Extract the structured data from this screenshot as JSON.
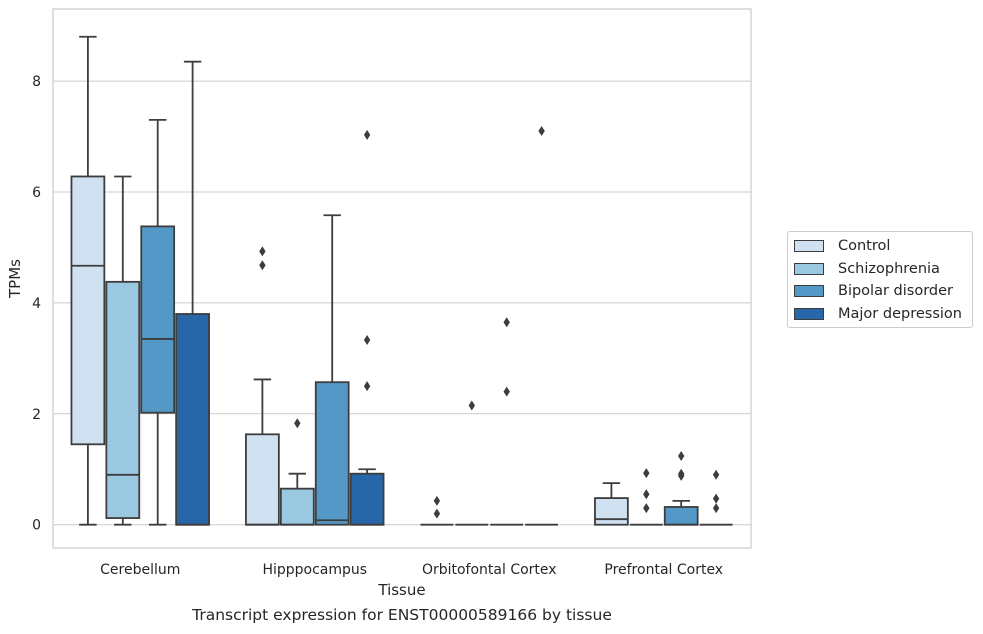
{
  "chart_data": {
    "type": "box",
    "title": "",
    "xlabel": "Tissue",
    "ylabel": "TPMs",
    "caption": "Transcript expression for ENST00000589166 by tissue",
    "ylim": [
      -0.42,
      9.3
    ],
    "yticks": [
      0,
      2,
      4,
      6,
      8
    ],
    "grid": "horizontal",
    "legend_position": "right",
    "categories": [
      "Cerebellum",
      "Hipppocampus",
      "Orbitofontal Cortex",
      "Prefrontal Cortex"
    ],
    "series": [
      {
        "name": "Control",
        "color": "#d0e1f2",
        "boxes": [
          {
            "min": 0,
            "q1": 1.45,
            "median": 4.67,
            "q3": 6.28,
            "max": 8.8,
            "outliers": []
          },
          {
            "min": 0,
            "q1": 0,
            "median": 0,
            "q3": 1.63,
            "max": 2.62,
            "outliers": [
              4.68,
              4.93
            ]
          },
          {
            "min": 0,
            "q1": 0,
            "median": 0,
            "q3": 0,
            "max": 0,
            "outliers": [
              0.2,
              0.43
            ]
          },
          {
            "min": 0,
            "q1": 0,
            "median": 0.1,
            "q3": 0.48,
            "max": 0.75,
            "outliers": []
          }
        ]
      },
      {
        "name": "Schizophrenia",
        "color": "#9ac8e0",
        "boxes": [
          {
            "min": 0,
            "q1": 0.12,
            "median": 0.9,
            "q3": 4.38,
            "max": 6.28,
            "outliers": []
          },
          {
            "min": 0,
            "q1": 0,
            "median": 0,
            "q3": 0.65,
            "max": 0.92,
            "outliers": [
              1.83
            ]
          },
          {
            "min": 0,
            "q1": 0,
            "median": 0,
            "q3": 0,
            "max": 0,
            "outliers": [
              2.15
            ]
          },
          {
            "min": 0,
            "q1": 0,
            "median": 0,
            "q3": 0,
            "max": 0,
            "outliers": [
              0.3,
              0.55,
              0.93
            ]
          }
        ]
      },
      {
        "name": "Bipolar disorder",
        "color": "#5498c8",
        "boxes": [
          {
            "min": 0,
            "q1": 2.02,
            "median": 3.35,
            "q3": 5.38,
            "max": 7.3,
            "outliers": []
          },
          {
            "min": 0,
            "q1": 0,
            "median": 0.08,
            "q3": 2.57,
            "max": 5.58,
            "outliers": []
          },
          {
            "min": 0,
            "q1": 0,
            "median": 0,
            "q3": 0,
            "max": 0,
            "outliers": [
              2.4,
              3.65
            ]
          },
          {
            "min": 0,
            "q1": 0,
            "median": 0,
            "q3": 0.32,
            "max": 0.43,
            "outliers": [
              0.88,
              0.92,
              1.24
            ]
          }
        ]
      },
      {
        "name": "Major depression",
        "color": "#2766a8",
        "boxes": [
          {
            "min": 0,
            "q1": 0,
            "median": 0,
            "q3": 3.8,
            "max": 8.35,
            "outliers": []
          },
          {
            "min": 0,
            "q1": 0,
            "median": 0,
            "q3": 0.92,
            "max": 1.0,
            "outliers": [
              2.5,
              3.33,
              7.03
            ]
          },
          {
            "min": 0,
            "q1": 0,
            "median": 0,
            "q3": 0,
            "max": 0,
            "outliers": [
              7.1
            ]
          },
          {
            "min": 0,
            "q1": 0,
            "median": 0,
            "q3": 0,
            "max": 0,
            "outliers": [
              0.3,
              0.47,
              0.9
            ]
          }
        ]
      }
    ]
  }
}
